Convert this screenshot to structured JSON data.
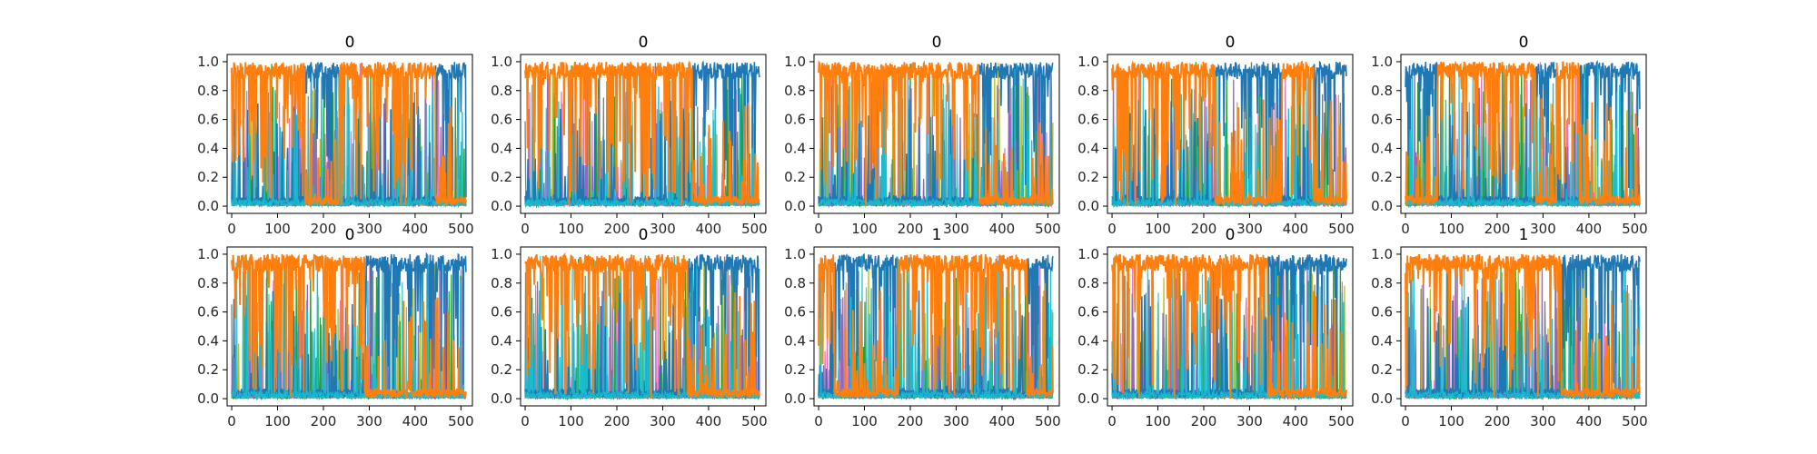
{
  "figure": {
    "background": "#ffffff",
    "axes_color": "#000000"
  },
  "chart_data": [
    {
      "type": "line",
      "title": "0",
      "xlim": [
        -10,
        525
      ],
      "ylim": [
        -0.05,
        1.05
      ],
      "xticks": [
        "0",
        "100",
        "200",
        "300",
        "400",
        "500"
      ],
      "yticks": [
        "0.0",
        "0.2",
        "0.4",
        "0.6",
        "0.8",
        "1.0"
      ],
      "segments": [
        {
          "start": 0,
          "end": 160,
          "dominant": "orange"
        },
        {
          "start": 160,
          "end": 235,
          "dominant": "blue"
        },
        {
          "start": 235,
          "end": 445,
          "dominant": "orange"
        },
        {
          "start": 445,
          "end": 512,
          "dominant": "blue"
        }
      ]
    },
    {
      "type": "line",
      "title": "0",
      "xlim": [
        -10,
        525
      ],
      "ylim": [
        -0.05,
        1.05
      ],
      "xticks": [
        "0",
        "100",
        "200",
        "300",
        "400",
        "500"
      ],
      "yticks": [
        "0.0",
        "0.2",
        "0.4",
        "0.6",
        "0.8",
        "1.0"
      ],
      "segments": [
        {
          "start": 0,
          "end": 365,
          "dominant": "orange"
        },
        {
          "start": 365,
          "end": 512,
          "dominant": "blue"
        }
      ]
    },
    {
      "type": "line",
      "title": "0",
      "xlim": [
        -10,
        525
      ],
      "ylim": [
        -0.05,
        1.05
      ],
      "xticks": [
        "0",
        "100",
        "200",
        "300",
        "400",
        "500"
      ],
      "yticks": [
        "0.0",
        "0.2",
        "0.4",
        "0.6",
        "0.8",
        "1.0"
      ],
      "segments": [
        {
          "start": 0,
          "end": 350,
          "dominant": "orange"
        },
        {
          "start": 350,
          "end": 512,
          "dominant": "blue"
        }
      ]
    },
    {
      "type": "line",
      "title": "0",
      "xlim": [
        -10,
        525
      ],
      "ylim": [
        -0.05,
        1.05
      ],
      "xticks": [
        "0",
        "100",
        "200",
        "300",
        "400",
        "500"
      ],
      "yticks": [
        "0.0",
        "0.2",
        "0.4",
        "0.6",
        "0.8",
        "1.0"
      ],
      "segments": [
        {
          "start": 0,
          "end": 225,
          "dominant": "orange"
        },
        {
          "start": 225,
          "end": 370,
          "dominant": "blue"
        },
        {
          "start": 370,
          "end": 440,
          "dominant": "orange"
        },
        {
          "start": 440,
          "end": 512,
          "dominant": "blue"
        }
      ]
    },
    {
      "type": "line",
      "title": "0",
      "xlim": [
        -10,
        525
      ],
      "ylim": [
        -0.05,
        1.05
      ],
      "xticks": [
        "0",
        "100",
        "200",
        "300",
        "400",
        "500"
      ],
      "yticks": [
        "0.0",
        "0.2",
        "0.4",
        "0.6",
        "0.8",
        "1.0"
      ],
      "segments": [
        {
          "start": 0,
          "end": 70,
          "dominant": "blue"
        },
        {
          "start": 70,
          "end": 285,
          "dominant": "orange"
        },
        {
          "start": 285,
          "end": 330,
          "dominant": "blue"
        },
        {
          "start": 330,
          "end": 380,
          "dominant": "orange"
        },
        {
          "start": 380,
          "end": 512,
          "dominant": "blue"
        }
      ]
    },
    {
      "type": "line",
      "title": "0",
      "xlim": [
        -10,
        525
      ],
      "ylim": [
        -0.05,
        1.05
      ],
      "xticks": [
        "0",
        "100",
        "200",
        "300",
        "400",
        "500"
      ],
      "yticks": [
        "0.0",
        "0.2",
        "0.4",
        "0.6",
        "0.8",
        "1.0"
      ],
      "segments": [
        {
          "start": 0,
          "end": 290,
          "dominant": "orange"
        },
        {
          "start": 290,
          "end": 512,
          "dominant": "blue"
        }
      ]
    },
    {
      "type": "line",
      "title": "0",
      "xlim": [
        -10,
        525
      ],
      "ylim": [
        -0.05,
        1.05
      ],
      "xticks": [
        "0",
        "100",
        "200",
        "300",
        "400",
        "500"
      ],
      "yticks": [
        "0.0",
        "0.2",
        "0.4",
        "0.6",
        "0.8",
        "1.0"
      ],
      "segments": [
        {
          "start": 0,
          "end": 355,
          "dominant": "orange"
        },
        {
          "start": 355,
          "end": 512,
          "dominant": "blue"
        }
      ]
    },
    {
      "type": "line",
      "title": "1",
      "xlim": [
        -10,
        525
      ],
      "ylim": [
        -0.05,
        1.05
      ],
      "xticks": [
        "0",
        "100",
        "200",
        "300",
        "400",
        "500"
      ],
      "yticks": [
        "0.0",
        "0.2",
        "0.4",
        "0.6",
        "0.8",
        "1.0"
      ],
      "segments": [
        {
          "start": 0,
          "end": 35,
          "dominant": "orange"
        },
        {
          "start": 35,
          "end": 175,
          "dominant": "blue"
        },
        {
          "start": 175,
          "end": 455,
          "dominant": "orange"
        },
        {
          "start": 455,
          "end": 512,
          "dominant": "blue"
        }
      ]
    },
    {
      "type": "line",
      "title": "0",
      "xlim": [
        -10,
        525
      ],
      "ylim": [
        -0.05,
        1.05
      ],
      "xticks": [
        "0",
        "100",
        "200",
        "300",
        "400",
        "500"
      ],
      "yticks": [
        "0.0",
        "0.2",
        "0.4",
        "0.6",
        "0.8",
        "1.0"
      ],
      "segments": [
        {
          "start": 0,
          "end": 340,
          "dominant": "orange"
        },
        {
          "start": 340,
          "end": 512,
          "dominant": "blue"
        }
      ]
    },
    {
      "type": "line",
      "title": "1",
      "xlim": [
        -10,
        525
      ],
      "ylim": [
        -0.05,
        1.05
      ],
      "xticks": [
        "0",
        "100",
        "200",
        "300",
        "400",
        "500"
      ],
      "yticks": [
        "0.0",
        "0.2",
        "0.4",
        "0.6",
        "0.8",
        "1.0"
      ],
      "segments": [
        {
          "start": 0,
          "end": 340,
          "dominant": "orange"
        },
        {
          "start": 340,
          "end": 512,
          "dominant": "blue"
        }
      ]
    }
  ],
  "series_colors": {
    "blue": "#1f77b4",
    "orange": "#ff7f0e",
    "cyan": "#17becf",
    "olive": "#bcbd22",
    "green": "#2ca02c",
    "pink": "#e377c2",
    "purple": "#9467bd",
    "gray": "#7f7f7f"
  }
}
